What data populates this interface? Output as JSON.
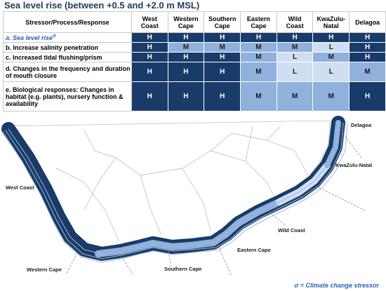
{
  "title": "Sea level rise (between +0.5 and +2.0 m MSL)",
  "table": {
    "corner_header": "Stressor/Process/Response",
    "columns": [
      "West\nCoast",
      "Western\nCape",
      "Southern\nCape",
      "Eastern\nCape",
      "Wild\nCoast",
      "KwaZulu-\nNatal",
      "Delagoa"
    ],
    "rows": [
      {
        "label": "a. Sea level rise",
        "marker": "σ",
        "values": [
          "H",
          "H",
          "H",
          "H",
          "H",
          "H",
          "H"
        ]
      },
      {
        "label": "b. Increase salinity penetration",
        "values": [
          "H",
          "M",
          "M",
          "M",
          "M",
          "L",
          "H"
        ]
      },
      {
        "label": "c. Increased tidal flushing/prism",
        "values": [
          "H",
          "H",
          "H",
          "M",
          "L",
          "M",
          "H"
        ]
      },
      {
        "label": "d. Changes in the frequency and duration of mouth closure",
        "values": [
          "H",
          "H",
          "H",
          "M",
          "L",
          "L",
          "M"
        ]
      },
      {
        "label": "e. Biological responses: Changes in habitat (e.g. plants), nursery function & availability",
        "values": [
          "H",
          "H",
          "H",
          "M",
          "M",
          "M",
          "H"
        ]
      }
    ]
  },
  "map": {
    "labels": [
      "Delagoa",
      "KwaZulu-Natal",
      "West Coast",
      "Wild Coast",
      "Eastern Cape",
      "Western Cape",
      "Southern Cape"
    ]
  },
  "footnote": "σ = Climate change stressor",
  "colors": {
    "H": "#193b6a",
    "M": "#8fb1dc",
    "L": "#cfdef2"
  }
}
